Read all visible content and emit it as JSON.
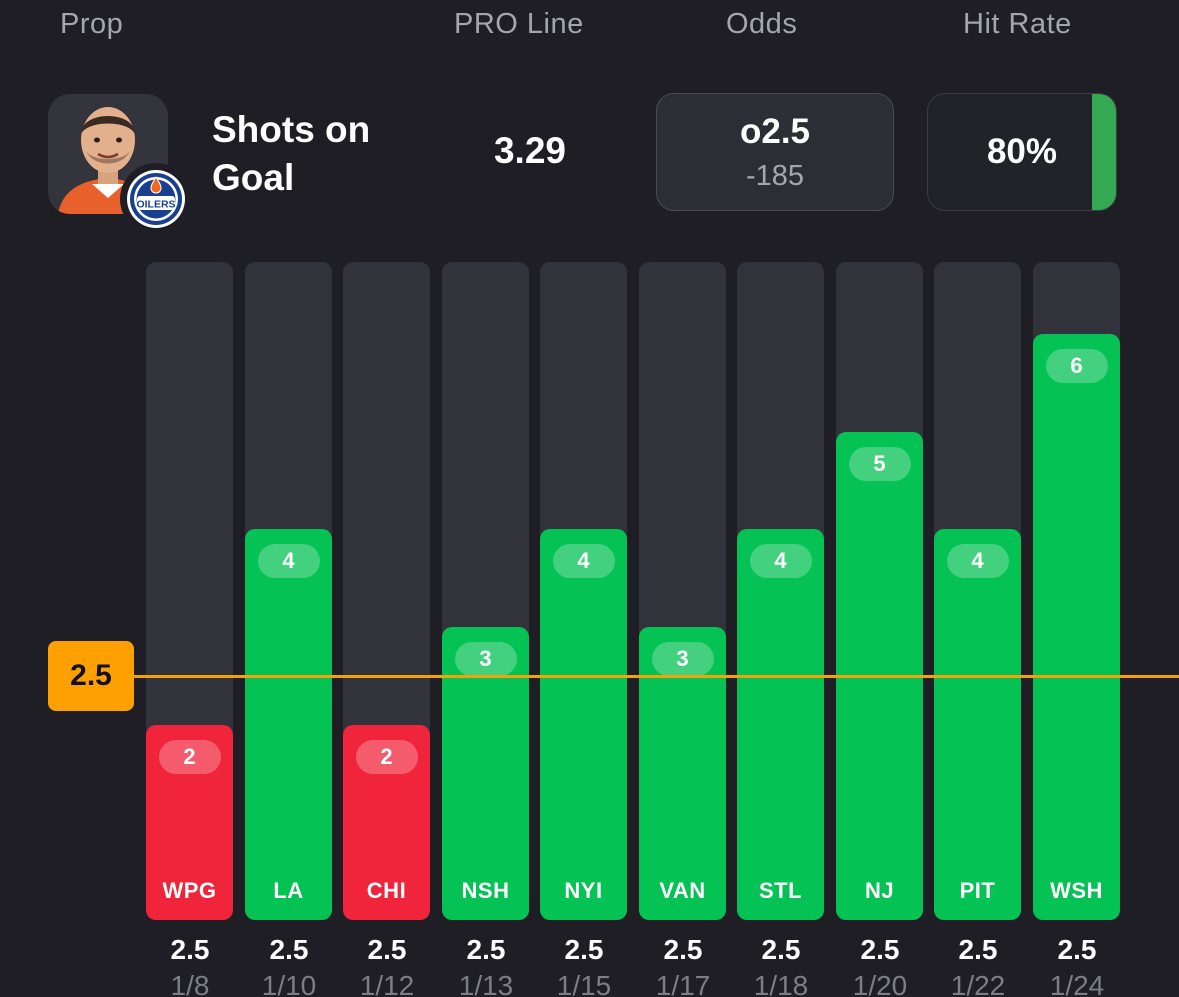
{
  "headers": {
    "prop": "Prop",
    "pro_line": "PRO Line",
    "odds": "Odds",
    "hit_rate": "Hit Rate"
  },
  "prop": {
    "name": "Shots on Goal",
    "team_logo": "OILERS",
    "pro_line_value": "3.29",
    "odds_line": "o2.5",
    "odds_price": "-185",
    "hit_rate": "80%",
    "hit_rate_fraction": 0.8
  },
  "threshold": {
    "value": 2.5,
    "label": "2.5"
  },
  "colors": {
    "over": "#04c253",
    "under": "#f0243a",
    "track": "#31323a",
    "threshold": "#fea002"
  },
  "chart_data": {
    "type": "bar",
    "title": "Shots on Goal",
    "ylim": [
      0,
      6.74
    ],
    "threshold": 2.5,
    "categories": [
      "WPG",
      "LA",
      "CHI",
      "NSH",
      "NYI",
      "VAN",
      "STL",
      "NJ",
      "PIT",
      "WSH"
    ],
    "values": [
      2,
      4,
      2,
      3,
      4,
      3,
      4,
      5,
      4,
      6
    ],
    "lines": [
      "2.5",
      "2.5",
      "2.5",
      "2.5",
      "2.5",
      "2.5",
      "2.5",
      "2.5",
      "2.5",
      "2.5"
    ],
    "dates": [
      "1/8",
      "1/10",
      "1/12",
      "1/13",
      "1/15",
      "1/17",
      "1/18",
      "1/20",
      "1/22",
      "1/24"
    ]
  }
}
